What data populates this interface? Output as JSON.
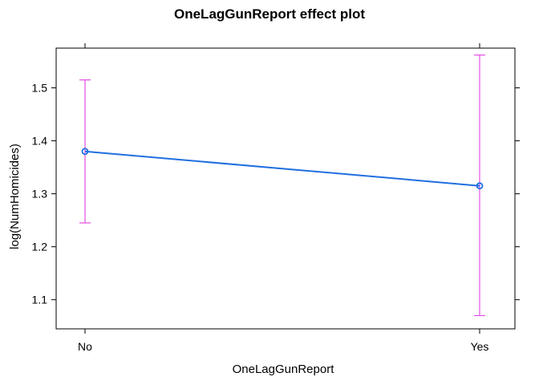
{
  "chart_data": {
    "type": "line",
    "title": "OneLagGunReport effect plot",
    "xlabel": "OneLagGunReport",
    "ylabel": "log(NumHomicides)",
    "categories": [
      "No",
      "Yes"
    ],
    "series": [
      {
        "values": [
          1.38,
          1.315
        ],
        "lower": [
          1.245,
          1.07
        ],
        "upper": [
          1.515,
          1.562
        ]
      }
    ],
    "ylim": [
      1.045,
      1.575
    ],
    "yticks": [
      1.1,
      1.2,
      1.3,
      1.4,
      1.5
    ],
    "grid": false,
    "colors": {
      "line": "#1f6fe0",
      "errorbar": "#e64fe6",
      "axis": "#000000"
    }
  }
}
